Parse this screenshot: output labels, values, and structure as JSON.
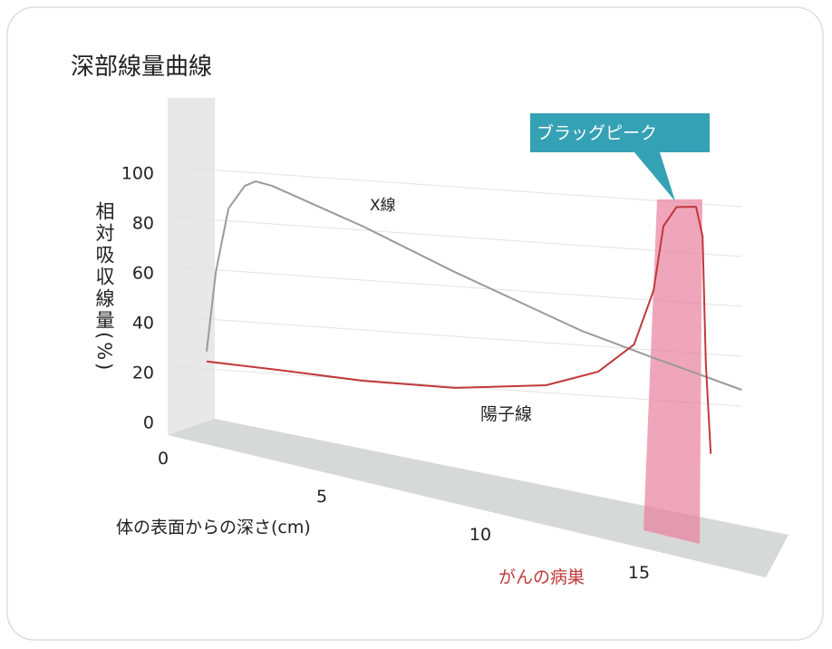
{
  "chart_data": {
    "type": "line",
    "title": "深部線量曲線",
    "y_label": "相対吸収線量(%)",
    "x_label": "体の表面からの深さ(cm)",
    "xlim": [
      0,
      16.4
    ],
    "ylim": [
      0,
      100
    ],
    "xticks": [
      0,
      5,
      10,
      15
    ],
    "yticks": [
      0,
      20,
      40,
      60,
      80,
      100
    ],
    "grid": true,
    "annotations": [
      "ブラッグピーク",
      "がんの病巣"
    ],
    "series": [
      {
        "name": "X線",
        "color": "#9a9a9a",
        "x": [
          0,
          0.28,
          0.67,
          1.17,
          1.5,
          2,
          4.8,
          7.6,
          11.5,
          13.7,
          16.4
        ],
        "values": [
          27,
          59,
          85,
          94.5,
          96.6,
          95.3,
          81.5,
          65.8,
          45.7,
          36.9,
          26.5
        ]
      },
      {
        "name": "陽子線",
        "color": "#c0393b",
        "x": [
          0,
          2.2,
          4.8,
          7.6,
          10.4,
          12,
          13.1,
          13.7,
          14,
          14.4,
          15,
          15.2,
          15.3,
          15.45
        ],
        "values": [
          23,
          21.6,
          19.6,
          19.3,
          22.9,
          29.8,
          41.7,
          64,
          90,
          98,
          98.7,
          87,
          36,
          0
        ]
      }
    ]
  }
}
